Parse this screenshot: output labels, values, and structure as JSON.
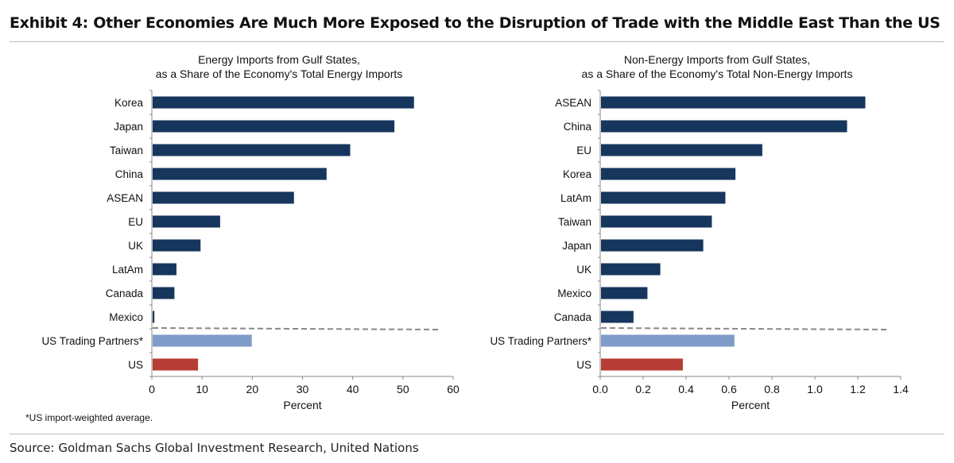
{
  "title": "Exhibit 4: Other Economies Are Much More Exposed to the Disruption of Trade with the Middle East Than the US",
  "footnote": "*US import-weighted average.",
  "source": "Source: Goldman Sachs Global Investment Research, United Nations",
  "colors": {
    "economy": "#17365d",
    "us_trading_partners": "#7f9cc8",
    "us": "#b63d35",
    "separator": "#888888"
  },
  "chart_data": [
    {
      "type": "bar",
      "orientation": "horizontal",
      "title": [
        "Energy Imports from Gulf States,",
        "as a Share of the Economy's Total Energy Imports"
      ],
      "xlabel": "Percent",
      "xlim": [
        0,
        60
      ],
      "xticks": [
        "0",
        "10",
        "20",
        "30",
        "40",
        "50",
        "60"
      ],
      "categories": [
        "Korea",
        "Japan",
        "Taiwan",
        "China",
        "ASEAN",
        "EU",
        "UK",
        "LatAm",
        "Canada",
        "Mexico",
        "US Trading Partners*",
        "US"
      ],
      "values": [
        52.2,
        48.3,
        39.5,
        34.8,
        28.3,
        13.6,
        9.7,
        4.9,
        4.5,
        0.5,
        19.9,
        9.2
      ],
      "grid": false
    },
    {
      "type": "bar",
      "orientation": "horizontal",
      "title": [
        "Non-Energy Imports from Gulf States,",
        "as a Share of the Economy's Total Non-Energy Imports"
      ],
      "xlabel": "Percent",
      "xlim": [
        0,
        1.4
      ],
      "xticks": [
        "0.0",
        "0.2",
        "0.4",
        "0.6",
        "0.8",
        "1.0",
        "1.2",
        "1.4"
      ],
      "categories": [
        "ASEAN",
        "China",
        "EU",
        "Korea",
        "LatAm",
        "Taiwan",
        "Japan",
        "UK",
        "Mexico",
        "Canada",
        "US Trading Partners*",
        "US"
      ],
      "values": [
        1.235,
        1.15,
        0.755,
        0.63,
        0.583,
        0.52,
        0.48,
        0.28,
        0.22,
        0.155,
        0.625,
        0.385
      ],
      "grid": false
    }
  ]
}
